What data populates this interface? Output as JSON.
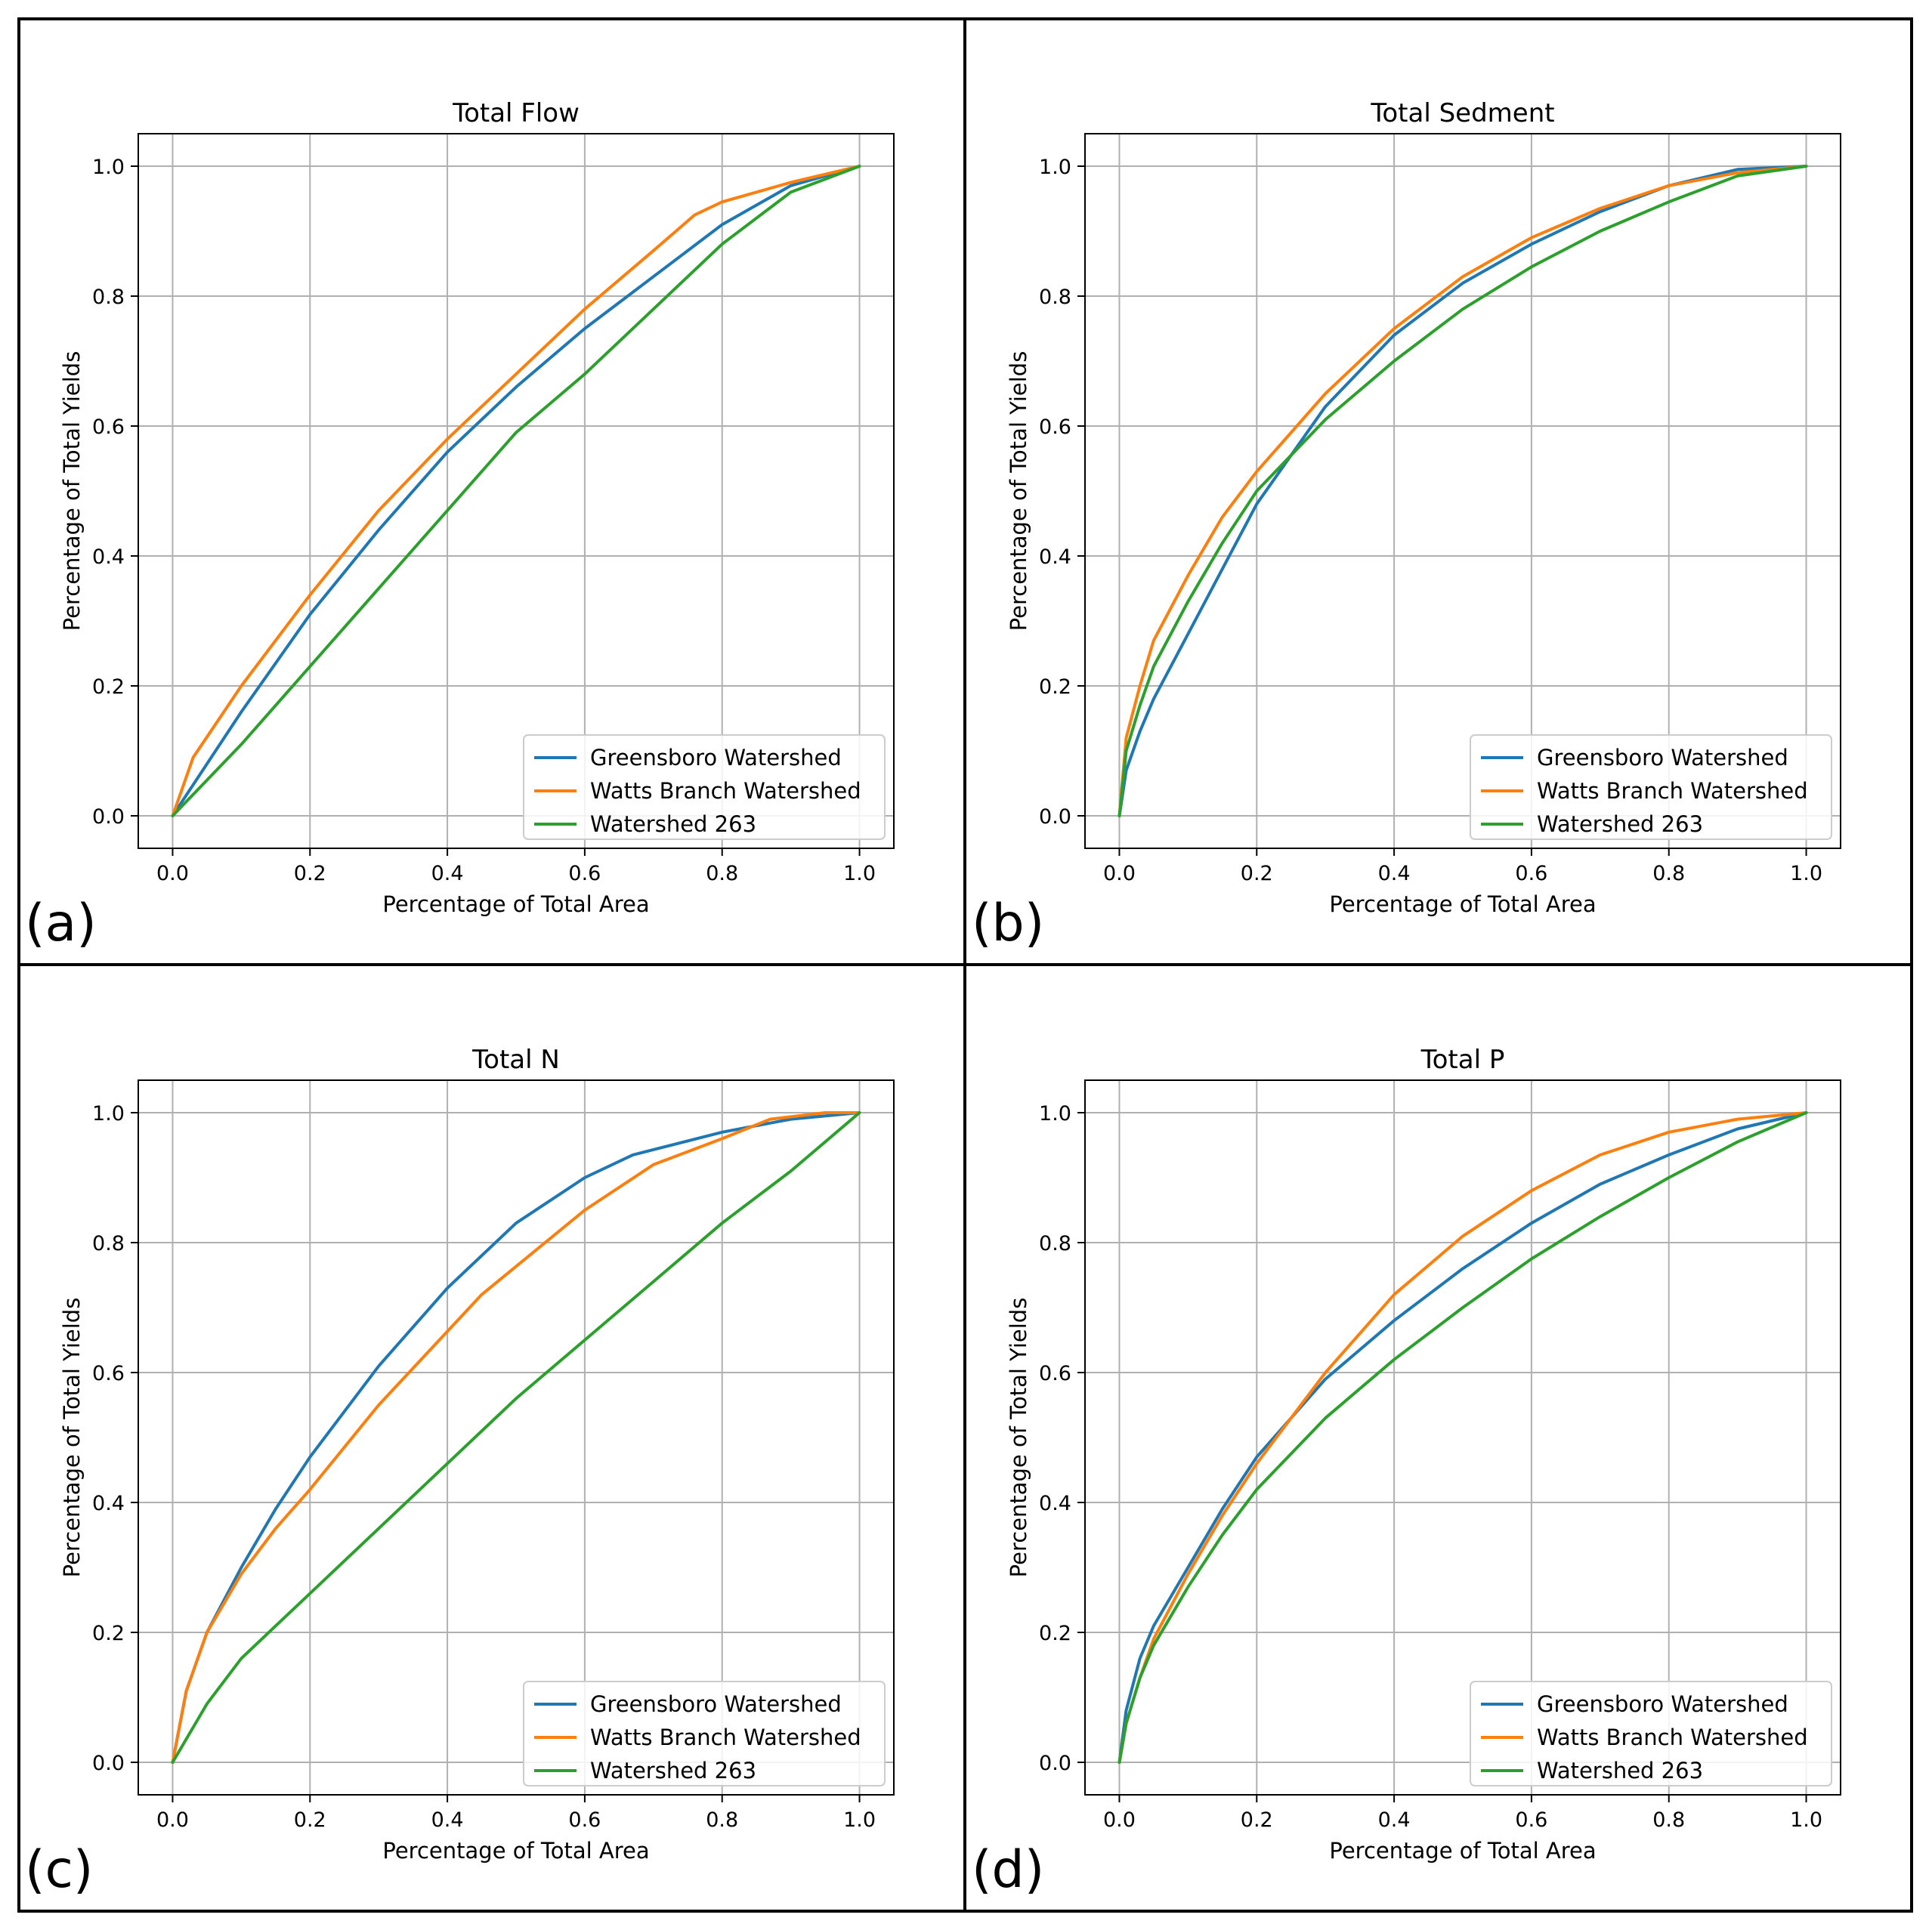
{
  "figure": {
    "panels": [
      "(a)",
      "(b)",
      "(c)",
      "(d)"
    ]
  },
  "colors": {
    "greensboro": "#1f77b4",
    "watts": "#ff7f0e",
    "ws263": "#2ca02c",
    "grid": "#b0b0b0",
    "border": "#000000"
  },
  "chart_data": [
    {
      "type": "line",
      "panel_label": "(a)",
      "title": "Total Flow",
      "xlabel": "Percentage of Total Area",
      "ylabel": "Percentage of Total Yields",
      "xlim": [
        -0.05,
        1.05
      ],
      "ylim": [
        -0.05,
        1.05
      ],
      "xticks": [
        "0.0",
        "0.2",
        "0.4",
        "0.6",
        "0.8",
        "1.0"
      ],
      "yticks": [
        "0.0",
        "0.2",
        "0.4",
        "0.6",
        "0.8",
        "1.0"
      ],
      "grid": true,
      "legend_position": "lower-right",
      "series": [
        {
          "name": "Greensboro Watershed",
          "color_key": "greensboro",
          "x": [
            0,
            0.1,
            0.2,
            0.3,
            0.4,
            0.5,
            0.6,
            0.7,
            0.8,
            0.9,
            1.0
          ],
          "y": [
            0,
            0.16,
            0.31,
            0.44,
            0.56,
            0.66,
            0.75,
            0.83,
            0.91,
            0.97,
            1.0
          ]
        },
        {
          "name": "Watts Branch Watershed",
          "color_key": "watts",
          "x": [
            0,
            0.03,
            0.1,
            0.2,
            0.3,
            0.4,
            0.5,
            0.6,
            0.7,
            0.76,
            0.8,
            0.9,
            1.0
          ],
          "y": [
            0,
            0.09,
            0.2,
            0.34,
            0.47,
            0.58,
            0.68,
            0.78,
            0.87,
            0.925,
            0.945,
            0.975,
            1.0
          ]
        },
        {
          "name": "Watershed 263",
          "color_key": "ws263",
          "x": [
            0,
            0.1,
            0.2,
            0.3,
            0.4,
            0.5,
            0.6,
            0.7,
            0.8,
            0.9,
            1.0
          ],
          "y": [
            0,
            0.11,
            0.23,
            0.35,
            0.47,
            0.59,
            0.68,
            0.78,
            0.88,
            0.96,
            1.0
          ]
        }
      ]
    },
    {
      "type": "line",
      "panel_label": "(b)",
      "title": "Total Sedment",
      "xlabel": "Percentage of Total Area",
      "ylabel": "Percentage of Total Yields",
      "xlim": [
        -0.05,
        1.05
      ],
      "ylim": [
        -0.05,
        1.05
      ],
      "xticks": [
        "0.0",
        "0.2",
        "0.4",
        "0.6",
        "0.8",
        "1.0"
      ],
      "yticks": [
        "0.0",
        "0.2",
        "0.4",
        "0.6",
        "0.8",
        "1.0"
      ],
      "grid": true,
      "legend_position": "lower-right",
      "series": [
        {
          "name": "Greensboro Watershed",
          "color_key": "greensboro",
          "x": [
            0,
            0.01,
            0.03,
            0.05,
            0.1,
            0.15,
            0.2,
            0.3,
            0.4,
            0.5,
            0.6,
            0.7,
            0.8,
            0.9,
            1.0
          ],
          "y": [
            0,
            0.07,
            0.13,
            0.18,
            0.28,
            0.38,
            0.48,
            0.63,
            0.74,
            0.82,
            0.88,
            0.93,
            0.97,
            0.995,
            1.0
          ]
        },
        {
          "name": "Watts Branch Watershed",
          "color_key": "watts",
          "x": [
            0,
            0.01,
            0.03,
            0.05,
            0.1,
            0.15,
            0.2,
            0.3,
            0.4,
            0.5,
            0.6,
            0.7,
            0.8,
            0.9,
            1.0
          ],
          "y": [
            0,
            0.12,
            0.2,
            0.27,
            0.37,
            0.46,
            0.53,
            0.65,
            0.75,
            0.83,
            0.89,
            0.935,
            0.97,
            0.99,
            1.0
          ]
        },
        {
          "name": "Watershed 263",
          "color_key": "ws263",
          "x": [
            0,
            0.01,
            0.03,
            0.05,
            0.1,
            0.15,
            0.2,
            0.3,
            0.4,
            0.5,
            0.6,
            0.7,
            0.8,
            0.9,
            1.0
          ],
          "y": [
            0,
            0.1,
            0.17,
            0.23,
            0.33,
            0.42,
            0.5,
            0.61,
            0.7,
            0.78,
            0.845,
            0.9,
            0.945,
            0.985,
            1.0
          ]
        }
      ]
    },
    {
      "type": "line",
      "panel_label": "(c)",
      "title": "Total N",
      "xlabel": "Percentage of Total Area",
      "ylabel": "Percentage of Total Yields",
      "xlim": [
        -0.05,
        1.05
      ],
      "ylim": [
        -0.05,
        1.05
      ],
      "xticks": [
        "0.0",
        "0.2",
        "0.4",
        "0.6",
        "0.8",
        "1.0"
      ],
      "yticks": [
        "0.0",
        "0.2",
        "0.4",
        "0.6",
        "0.8",
        "1.0"
      ],
      "grid": true,
      "legend_position": "lower-right",
      "series": [
        {
          "name": "Greensboro Watershed",
          "color_key": "greensboro",
          "x": [
            0,
            0.02,
            0.05,
            0.1,
            0.15,
            0.2,
            0.3,
            0.4,
            0.5,
            0.6,
            0.67,
            0.8,
            0.9,
            1.0
          ],
          "y": [
            0,
            0.11,
            0.2,
            0.3,
            0.39,
            0.47,
            0.61,
            0.73,
            0.83,
            0.9,
            0.935,
            0.97,
            0.99,
            1.0
          ]
        },
        {
          "name": "Watts Branch Watershed",
          "color_key": "watts",
          "x": [
            0,
            0.02,
            0.05,
            0.1,
            0.15,
            0.2,
            0.3,
            0.45,
            0.6,
            0.7,
            0.8,
            0.87,
            0.95,
            1.0
          ],
          "y": [
            0,
            0.11,
            0.2,
            0.29,
            0.36,
            0.42,
            0.55,
            0.72,
            0.85,
            0.92,
            0.96,
            0.99,
            1.0,
            1.0
          ]
        },
        {
          "name": "Watershed 263",
          "color_key": "ws263",
          "x": [
            0,
            0.05,
            0.1,
            0.2,
            0.3,
            0.4,
            0.5,
            0.6,
            0.7,
            0.8,
            0.9,
            1.0
          ],
          "y": [
            0,
            0.09,
            0.16,
            0.26,
            0.36,
            0.46,
            0.56,
            0.65,
            0.74,
            0.83,
            0.91,
            1.0
          ]
        }
      ]
    },
    {
      "type": "line",
      "panel_label": "(d)",
      "title": "Total P",
      "xlabel": "Percentage of Total Area",
      "ylabel": "Percentage of Total Yields",
      "xlim": [
        -0.05,
        1.05
      ],
      "ylim": [
        -0.05,
        1.05
      ],
      "xticks": [
        "0.0",
        "0.2",
        "0.4",
        "0.6",
        "0.8",
        "1.0"
      ],
      "yticks": [
        "0.0",
        "0.2",
        "0.4",
        "0.6",
        "0.8",
        "1.0"
      ],
      "grid": true,
      "legend_position": "lower-right",
      "series": [
        {
          "name": "Greensboro Watershed",
          "color_key": "greensboro",
          "x": [
            0,
            0.01,
            0.03,
            0.05,
            0.1,
            0.15,
            0.2,
            0.3,
            0.4,
            0.5,
            0.6,
            0.7,
            0.8,
            0.9,
            1.0
          ],
          "y": [
            0,
            0.08,
            0.16,
            0.21,
            0.3,
            0.39,
            0.47,
            0.59,
            0.68,
            0.76,
            0.83,
            0.89,
            0.935,
            0.975,
            1.0
          ]
        },
        {
          "name": "Watts Branch Watershed",
          "color_key": "watts",
          "x": [
            0,
            0.01,
            0.03,
            0.05,
            0.1,
            0.15,
            0.2,
            0.3,
            0.4,
            0.5,
            0.6,
            0.7,
            0.8,
            0.9,
            1.0
          ],
          "y": [
            0,
            0.06,
            0.13,
            0.19,
            0.29,
            0.38,
            0.46,
            0.6,
            0.72,
            0.81,
            0.88,
            0.935,
            0.97,
            0.99,
            1.0
          ]
        },
        {
          "name": "Watershed 263",
          "color_key": "ws263",
          "x": [
            0,
            0.01,
            0.03,
            0.05,
            0.1,
            0.15,
            0.2,
            0.3,
            0.4,
            0.5,
            0.6,
            0.7,
            0.8,
            0.9,
            1.0
          ],
          "y": [
            0,
            0.06,
            0.13,
            0.18,
            0.27,
            0.35,
            0.42,
            0.53,
            0.62,
            0.7,
            0.775,
            0.84,
            0.9,
            0.955,
            1.0
          ]
        }
      ]
    }
  ]
}
